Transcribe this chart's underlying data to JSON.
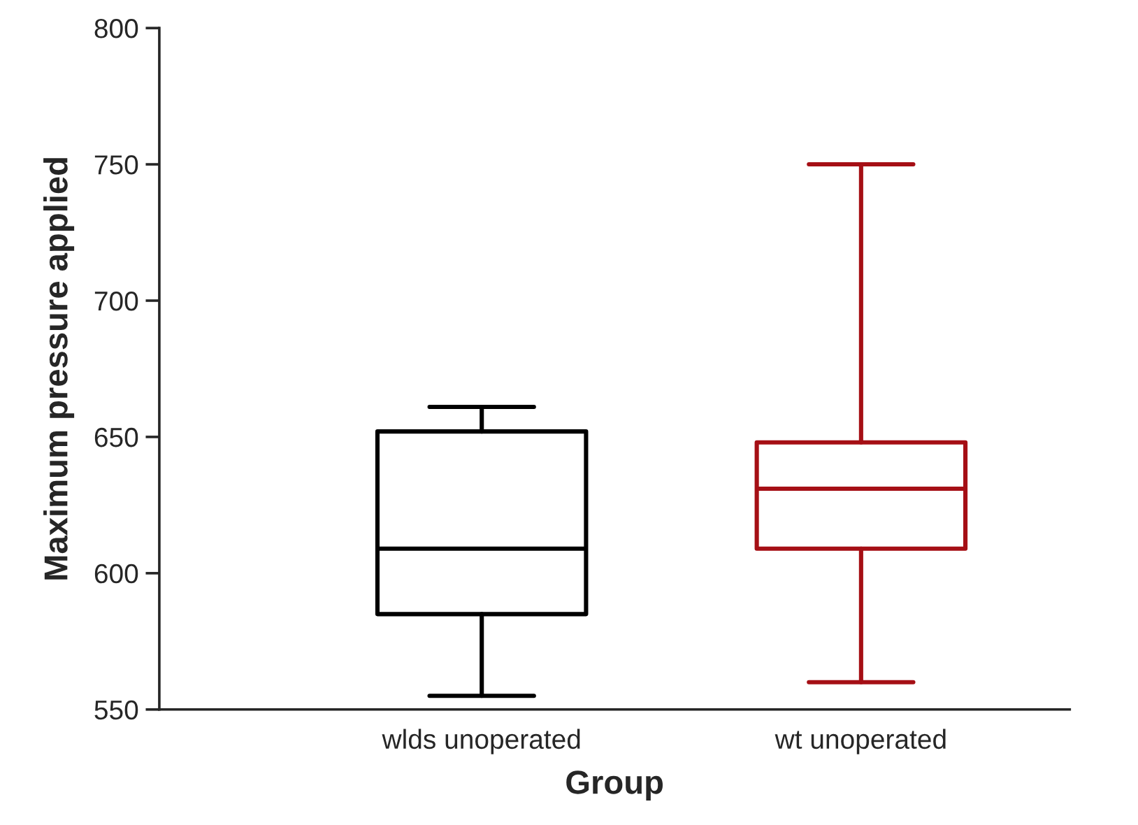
{
  "chart_data": {
    "type": "box",
    "xlabel": "Group",
    "ylabel": "Maximum pressure applied",
    "categories": [
      "wlds unoperated",
      "wt unoperated"
    ],
    "boxes": [
      {
        "low": 555,
        "q1": 585,
        "median": 609,
        "q3": 652,
        "high": 661
      },
      {
        "low": 560,
        "q1": 609,
        "median": 631,
        "q3": 648,
        "high": 750
      }
    ],
    "colors": [
      "#000000",
      "#a50f15"
    ],
    "ylim": [
      550,
      800
    ],
    "yticks": [
      550,
      600,
      650,
      700,
      750,
      800
    ],
    "grid": false
  }
}
